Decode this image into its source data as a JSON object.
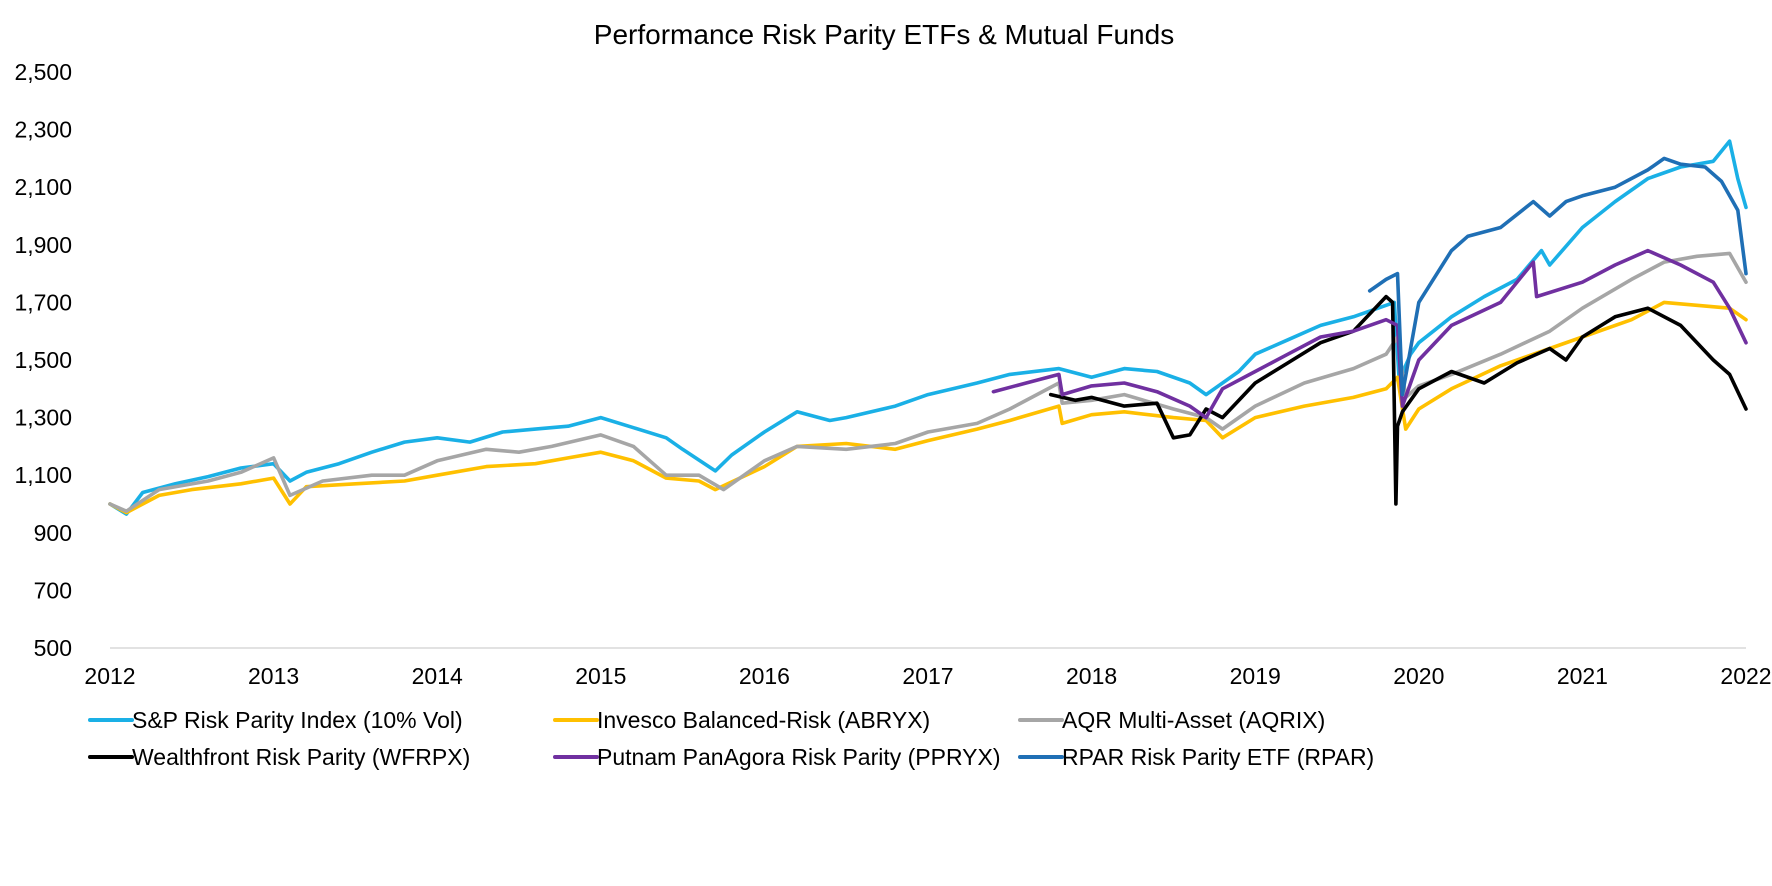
{
  "chart_data": {
    "type": "line",
    "title": "Performance Risk Parity ETFs & Mutual Funds",
    "xlabel": "",
    "ylabel": "",
    "xlim": [
      2012,
      2022
    ],
    "ylim": [
      500,
      2500
    ],
    "x_ticks": [
      "2012",
      "2013",
      "2014",
      "2015",
      "2016",
      "2017",
      "2018",
      "2019",
      "2020",
      "2021",
      "2022"
    ],
    "y_ticks": [
      "500",
      "700",
      "900",
      "1,100",
      "1,300",
      "1,500",
      "1,700",
      "1,900",
      "2,100",
      "2,300",
      "2,500"
    ],
    "grid": false,
    "legend_position": "bottom",
    "series": [
      {
        "name": "S&P Risk Parity Index (10% Vol)",
        "color": "#1ab0e6",
        "x": [
          2012.0,
          2012.1,
          2012.2,
          2012.4,
          2012.6,
          2012.8,
          2013.0,
          2013.1,
          2013.2,
          2013.4,
          2013.6,
          2013.8,
          2014.0,
          2014.2,
          2014.4,
          2014.6,
          2014.8,
          2015.0,
          2015.2,
          2015.4,
          2015.5,
          2015.7,
          2015.8,
          2016.0,
          2016.2,
          2016.4,
          2016.5,
          2016.8,
          2017.0,
          2017.3,
          2017.5,
          2017.8,
          2018.0,
          2018.2,
          2018.4,
          2018.6,
          2018.7,
          2018.9,
          2019.0,
          2019.2,
          2019.4,
          2019.6,
          2019.85,
          2019.88,
          2019.95,
          2020.0,
          2020.2,
          2020.4,
          2020.6,
          2020.75,
          2020.8,
          2021.0,
          2021.2,
          2021.4,
          2021.6,
          2021.8,
          2021.9,
          2021.95,
          2022.0
        ],
        "y": [
          1000,
          965,
          1040,
          1070,
          1095,
          1125,
          1140,
          1080,
          1110,
          1140,
          1180,
          1215,
          1230,
          1215,
          1250,
          1260,
          1270,
          1300,
          1265,
          1230,
          1190,
          1115,
          1170,
          1250,
          1320,
          1290,
          1300,
          1340,
          1380,
          1420,
          1450,
          1470,
          1440,
          1470,
          1460,
          1420,
          1380,
          1460,
          1520,
          1570,
          1620,
          1650,
          1700,
          1430,
          1520,
          1560,
          1650,
          1720,
          1780,
          1880,
          1830,
          1960,
          2050,
          2130,
          2170,
          2190,
          2260,
          2130,
          2030
        ]
      },
      {
        "name": "Invesco Balanced-Risk (ABRYX)",
        "color": "#ffc000",
        "x": [
          2012.0,
          2012.1,
          2012.3,
          2012.5,
          2012.8,
          2013.0,
          2013.1,
          2013.2,
          2013.5,
          2013.8,
          2014.0,
          2014.3,
          2014.6,
          2014.8,
          2015.0,
          2015.2,
          2015.4,
          2015.6,
          2015.7,
          2016.0,
          2016.2,
          2016.5,
          2016.8,
          2017.0,
          2017.3,
          2017.5,
          2017.8,
          2017.82,
          2018.0,
          2018.2,
          2018.5,
          2018.7,
          2018.8,
          2019.0,
          2019.3,
          2019.6,
          2019.8,
          2019.87,
          2019.92,
          2020.0,
          2020.2,
          2020.5,
          2020.8,
          2021.0,
          2021.3,
          2021.5,
          2021.7,
          2021.9,
          2022.0
        ],
        "y": [
          1000,
          970,
          1030,
          1050,
          1070,
          1090,
          1000,
          1060,
          1070,
          1080,
          1100,
          1130,
          1140,
          1160,
          1180,
          1150,
          1090,
          1080,
          1050,
          1130,
          1200,
          1210,
          1190,
          1220,
          1260,
          1290,
          1340,
          1280,
          1310,
          1320,
          1300,
          1290,
          1230,
          1300,
          1340,
          1370,
          1400,
          1440,
          1260,
          1330,
          1400,
          1480,
          1540,
          1580,
          1640,
          1700,
          1690,
          1680,
          1640
        ]
      },
      {
        "name": "AQR Multi-Asset (AQRIX)",
        "color": "#a6a6a6",
        "x": [
          2012.0,
          2012.1,
          2012.3,
          2012.6,
          2012.8,
          2013.0,
          2013.1,
          2013.3,
          2013.6,
          2013.8,
          2014.0,
          2014.3,
          2014.5,
          2014.7,
          2015.0,
          2015.2,
          2015.4,
          2015.6,
          2015.75,
          2016.0,
          2016.2,
          2016.5,
          2016.8,
          2017.0,
          2017.3,
          2017.5,
          2017.8,
          2017.82,
          2018.0,
          2018.2,
          2018.5,
          2018.7,
          2018.8,
          2019.0,
          2019.3,
          2019.6,
          2019.8,
          2019.87,
          2019.92,
          2020.0,
          2020.2,
          2020.5,
          2020.8,
          2021.0,
          2021.3,
          2021.5,
          2021.7,
          2021.9,
          2022.0
        ],
        "y": [
          1000,
          975,
          1050,
          1080,
          1110,
          1160,
          1030,
          1080,
          1100,
          1100,
          1150,
          1190,
          1180,
          1200,
          1240,
          1200,
          1100,
          1100,
          1050,
          1150,
          1200,
          1190,
          1210,
          1250,
          1280,
          1330,
          1420,
          1350,
          1360,
          1380,
          1330,
          1300,
          1260,
          1340,
          1420,
          1470,
          1520,
          1580,
          1370,
          1410,
          1450,
          1520,
          1600,
          1680,
          1780,
          1840,
          1860,
          1870,
          1770
        ]
      },
      {
        "name": "Wealthfront Risk Parity (WFRPX)",
        "color": "#000000",
        "x": [
          2017.75,
          2017.9,
          2018.0,
          2018.2,
          2018.4,
          2018.5,
          2018.6,
          2018.7,
          2018.8,
          2019.0,
          2019.2,
          2019.4,
          2019.6,
          2019.8,
          2019.84,
          2019.86,
          2019.87,
          2019.9,
          2020.0,
          2020.2,
          2020.4,
          2020.6,
          2020.8,
          2020.9,
          2021.0,
          2021.2,
          2021.4,
          2021.6,
          2021.8,
          2021.9,
          2022.0
        ],
        "y": [
          1380,
          1360,
          1370,
          1340,
          1350,
          1230,
          1240,
          1330,
          1300,
          1420,
          1490,
          1560,
          1600,
          1720,
          1700,
          1000,
          1270,
          1320,
          1400,
          1460,
          1420,
          1490,
          1540,
          1500,
          1580,
          1650,
          1680,
          1620,
          1500,
          1450,
          1330
        ]
      },
      {
        "name": "Putnam PanAgora Risk Parity (PPRYX)",
        "color": "#7030a0",
        "x": [
          2017.4,
          2017.6,
          2017.8,
          2017.82,
          2018.0,
          2018.2,
          2018.4,
          2018.6,
          2018.7,
          2018.8,
          2019.0,
          2019.2,
          2019.4,
          2019.6,
          2019.8,
          2019.87,
          2019.9,
          2020.0,
          2020.2,
          2020.5,
          2020.7,
          2020.72,
          2021.0,
          2021.2,
          2021.4,
          2021.6,
          2021.8,
          2021.9,
          2022.0
        ],
        "y": [
          1390,
          1420,
          1450,
          1380,
          1410,
          1420,
          1390,
          1340,
          1300,
          1400,
          1460,
          1520,
          1580,
          1600,
          1640,
          1620,
          1340,
          1500,
          1620,
          1700,
          1840,
          1720,
          1770,
          1830,
          1880,
          1830,
          1770,
          1680,
          1560
        ]
      },
      {
        "name": "RPAR Risk Parity ETF (RPAR)",
        "color": "#1f6fb5",
        "x": [
          2019.7,
          2019.8,
          2019.87,
          2019.9,
          2020.0,
          2020.2,
          2020.3,
          2020.5,
          2020.7,
          2020.8,
          2020.9,
          2021.0,
          2021.2,
          2021.4,
          2021.5,
          2021.6,
          2021.75,
          2021.85,
          2021.95,
          2022.0
        ],
        "y": [
          1740,
          1780,
          1800,
          1380,
          1700,
          1880,
          1930,
          1960,
          2050,
          2000,
          2050,
          2070,
          2100,
          2160,
          2200,
          2180,
          2170,
          2120,
          2020,
          1800
        ]
      }
    ]
  }
}
